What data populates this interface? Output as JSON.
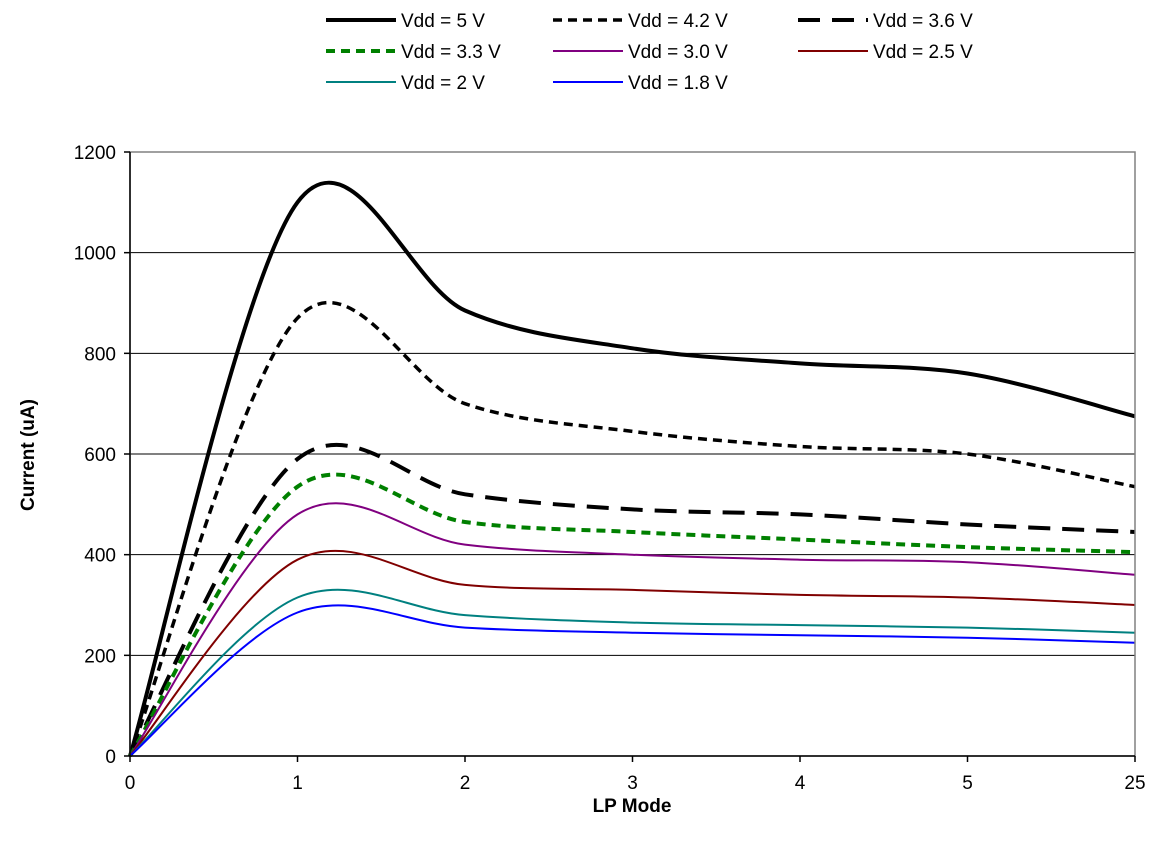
{
  "chart_data": {
    "type": "line",
    "xlabel": "LP Mode",
    "ylabel": "Current (uA)",
    "categories": [
      "0",
      "1",
      "2",
      "3",
      "4",
      "5",
      "25"
    ],
    "ylim": [
      0,
      1200
    ],
    "yticks": [
      0,
      200,
      400,
      600,
      800,
      1000,
      1200
    ],
    "grid": "horizontal",
    "legend": "top",
    "series": [
      {
        "name": "Vdd = 5 V",
        "color": "#000000",
        "style": "solid",
        "width": 4,
        "values": [
          0,
          1100,
          885,
          810,
          780,
          760,
          675
        ]
      },
      {
        "name": "Vdd = 4.2 V",
        "color": "#000000",
        "style": "dash",
        "width": 3.5,
        "values": [
          0,
          870,
          700,
          645,
          615,
          600,
          535
        ]
      },
      {
        "name": "Vdd = 3.6 V",
        "color": "#000000",
        "style": "long-dash",
        "width": 4,
        "values": [
          0,
          590,
          520,
          490,
          480,
          460,
          445
        ]
      },
      {
        "name": "Vdd = 3.3 V",
        "color": "#008000",
        "style": "dash",
        "width": 4,
        "values": [
          0,
          535,
          465,
          445,
          430,
          415,
          405
        ]
      },
      {
        "name": "Vdd = 3.0 V",
        "color": "#800080",
        "style": "solid",
        "width": 2,
        "values": [
          0,
          480,
          420,
          400,
          390,
          385,
          360
        ]
      },
      {
        "name": "Vdd = 2.5 V",
        "color": "#800000",
        "style": "solid",
        "width": 2,
        "values": [
          0,
          390,
          340,
          330,
          320,
          315,
          300
        ]
      },
      {
        "name": "Vdd = 2 V",
        "color": "#008080",
        "style": "solid",
        "width": 2,
        "values": [
          0,
          315,
          280,
          265,
          260,
          255,
          245
        ]
      },
      {
        "name": "Vdd = 1.8 V",
        "color": "#0000ff",
        "style": "solid",
        "width": 2,
        "values": [
          0,
          285,
          255,
          245,
          240,
          235,
          225
        ]
      }
    ]
  }
}
